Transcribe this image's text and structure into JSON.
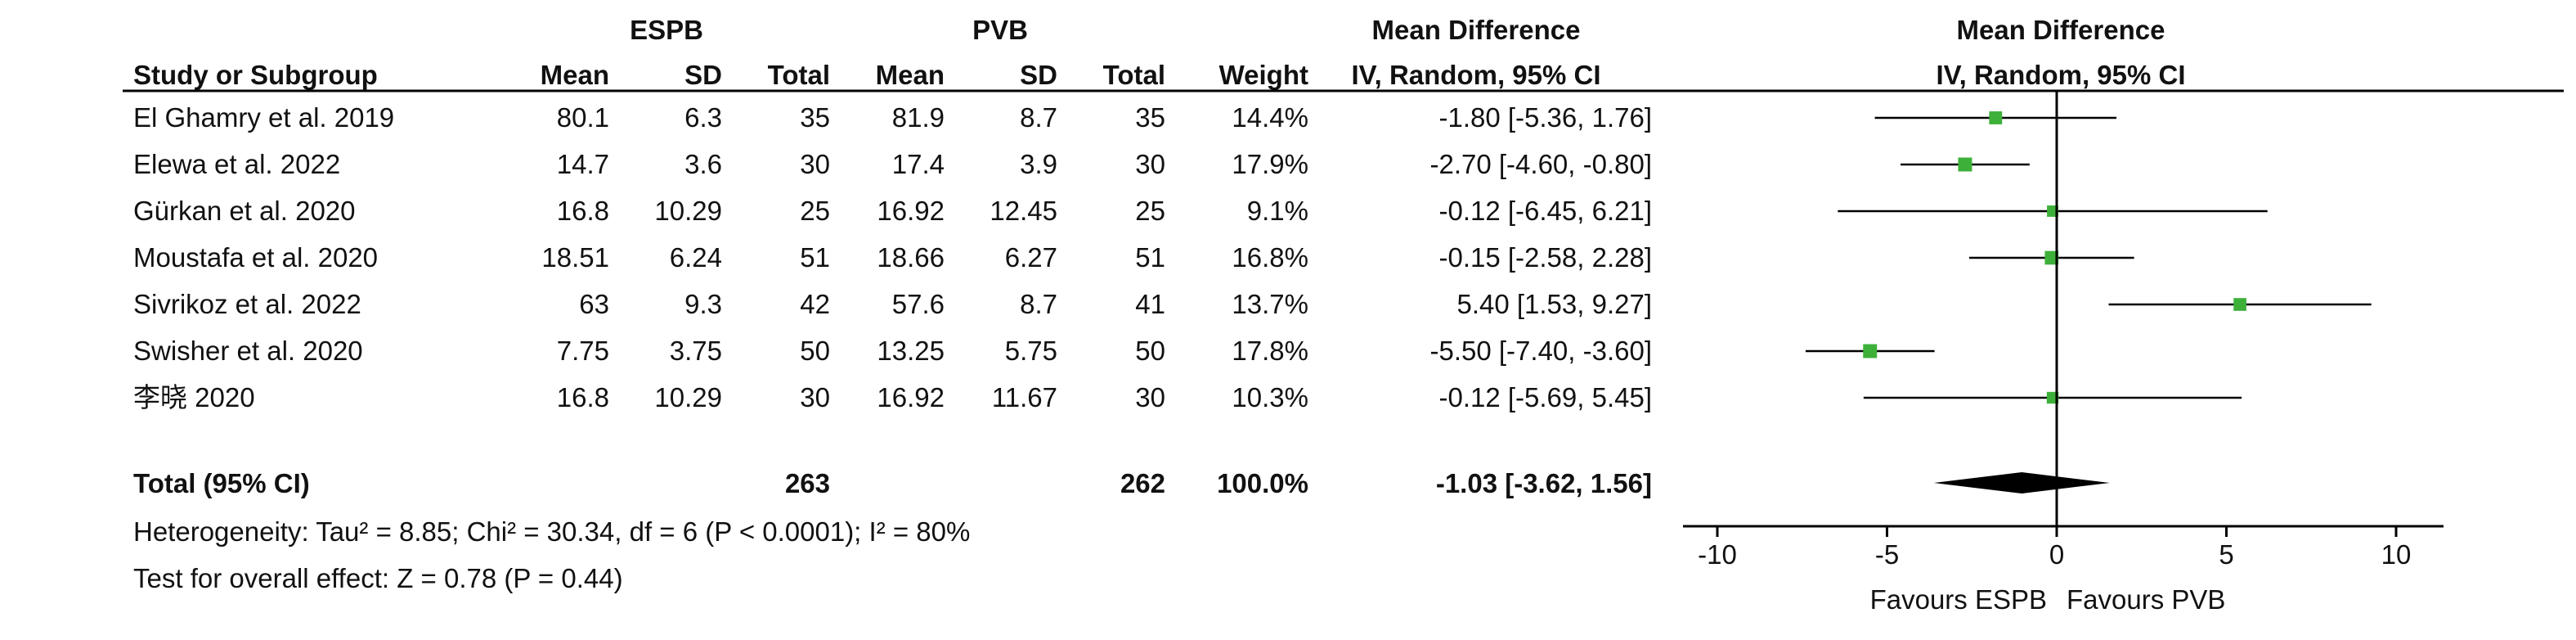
{
  "header": {
    "group_experimental": "ESPB",
    "group_control": "PVB",
    "effect_title": "Mean Difference",
    "plot_title": "Mean Difference",
    "col_study": "Study or Subgroup",
    "col_mean_1": "Mean",
    "col_sd_1": "SD",
    "col_total_1": "Total",
    "col_mean_2": "Mean",
    "col_sd_2": "SD",
    "col_total_2": "Total",
    "col_weight": "Weight",
    "col_ci": "IV, Random, 95% CI",
    "plot_ci": "IV, Random, 95% CI"
  },
  "studies": [
    {
      "name": "El Ghamry et al. 2019",
      "mean1": "80.1",
      "sd1": "6.3",
      "n1": "35",
      "mean2": "81.9",
      "sd2": "8.7",
      "n2": "35",
      "weight": "14.4%",
      "ci_text": "-1.80 [-5.36, 1.76]",
      "md": -1.8,
      "lo": -5.36,
      "hi": 1.76,
      "w": 14.4
    },
    {
      "name": "Elewa et al. 2022",
      "mean1": "14.7",
      "sd1": "3.6",
      "n1": "30",
      "mean2": "17.4",
      "sd2": "3.9",
      "n2": "30",
      "weight": "17.9%",
      "ci_text": "-2.70 [-4.60, -0.80]",
      "md": -2.7,
      "lo": -4.6,
      "hi": -0.8,
      "w": 17.9
    },
    {
      "name": "Gürkan et al. 2020",
      "mean1": "16.8",
      "sd1": "10.29",
      "n1": "25",
      "mean2": "16.92",
      "sd2": "12.45",
      "n2": "25",
      "weight": "9.1%",
      "ci_text": "-0.12 [-6.45, 6.21]",
      "md": -0.12,
      "lo": -6.45,
      "hi": 6.21,
      "w": 9.1
    },
    {
      "name": "Moustafa et al. 2020",
      "mean1": "18.51",
      "sd1": "6.24",
      "n1": "51",
      "mean2": "18.66",
      "sd2": "6.27",
      "n2": "51",
      "weight": "16.8%",
      "ci_text": "-0.15 [-2.58, 2.28]",
      "md": -0.15,
      "lo": -2.58,
      "hi": 2.28,
      "w": 16.8
    },
    {
      "name": "Sivrikoz et al. 2022",
      "mean1": "63",
      "sd1": "9.3",
      "n1": "42",
      "mean2": "57.6",
      "sd2": "8.7",
      "n2": "41",
      "weight": "13.7%",
      "ci_text": "5.40 [1.53, 9.27]",
      "md": 5.4,
      "lo": 1.53,
      "hi": 9.27,
      "w": 13.7
    },
    {
      "name": "Swisher et al. 2020",
      "mean1": "7.75",
      "sd1": "3.75",
      "n1": "50",
      "mean2": "13.25",
      "sd2": "5.75",
      "n2": "50",
      "weight": "17.8%",
      "ci_text": "-5.50 [-7.40, -3.60]",
      "md": -5.5,
      "lo": -7.4,
      "hi": -3.6,
      "w": 17.8
    },
    {
      "name": "李晓 2020",
      "mean1": "16.8",
      "sd1": "10.29",
      "n1": "30",
      "mean2": "16.92",
      "sd2": "11.67",
      "n2": "30",
      "weight": "10.3%",
      "ci_text": "-0.12 [-5.69, 5.45]",
      "md": -0.12,
      "lo": -5.69,
      "hi": 5.45,
      "w": 10.3
    }
  ],
  "total": {
    "label": "Total (95% CI)",
    "n1": "263",
    "n2": "262",
    "weight": "100.0%",
    "ci_text": "-1.03 [-3.62, 1.56]",
    "md": -1.03,
    "lo": -3.62,
    "hi": 1.56
  },
  "heterogeneity": "Heterogeneity: Tau² = 8.85; Chi² = 30.34, df = 6 (P < 0.0001); I² = 80%",
  "overall_effect": "Test for overall effect: Z = 0.78 (P = 0.44)",
  "axis": {
    "ticks": [
      -10,
      -5,
      0,
      5,
      10
    ],
    "tick_labels": [
      "-10",
      "-5",
      "0",
      "5",
      "10"
    ],
    "range": [
      -10,
      10
    ],
    "favours_left": "Favours ESPB",
    "favours_right": "Favours PVB"
  },
  "colors": {
    "marker": "#3db03a",
    "diamond": "#000000",
    "line": "#000000"
  },
  "chart_data": {
    "type": "forest",
    "x": [
      "El Ghamry et al. 2019",
      "Elewa et al. 2022",
      "Gürkan et al. 2020",
      "Moustafa et al. 2020",
      "Sivrikoz et al. 2022",
      "Swisher et al. 2020",
      "李晓 2020",
      "Total (95% CI)"
    ],
    "values": [
      -1.8,
      -2.7,
      -0.12,
      -0.15,
      5.4,
      -5.5,
      -0.12,
      -1.03
    ],
    "ci_lower": [
      -5.36,
      -4.6,
      -6.45,
      -2.58,
      1.53,
      -7.4,
      -5.69,
      -3.62
    ],
    "ci_upper": [
      1.76,
      -0.8,
      6.21,
      2.28,
      9.27,
      -3.6,
      5.45,
      1.56
    ],
    "weights": [
      14.4,
      17.9,
      9.1,
      16.8,
      13.7,
      17.8,
      10.3,
      100.0
    ],
    "xlim": [
      -10,
      10
    ],
    "xlabel": "",
    "ylabel": ""
  }
}
